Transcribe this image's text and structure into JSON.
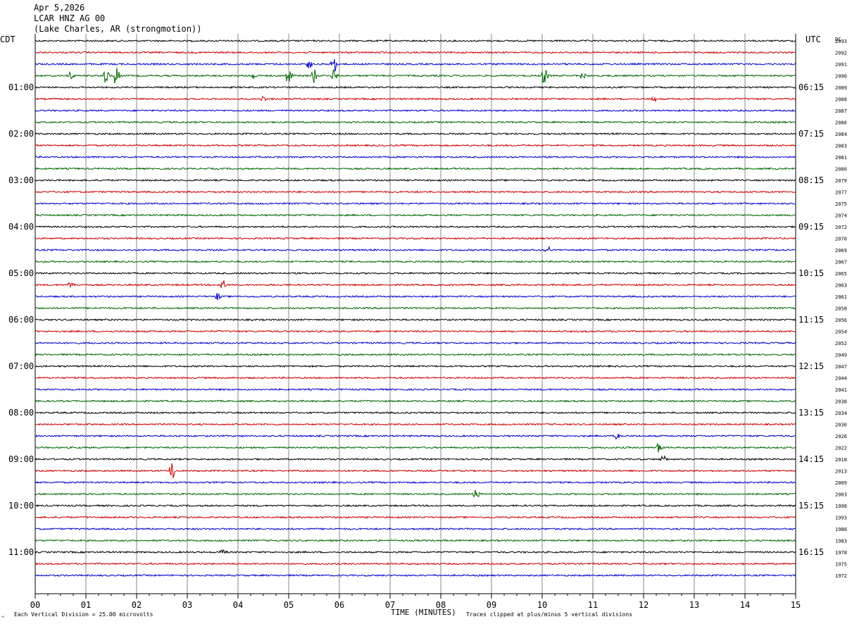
{
  "header": {
    "date": "Apr 5,2026",
    "station": "LCAR HNZ AG 00",
    "location": "(Lake Charles, AR (strongmotion))"
  },
  "labels": {
    "left_tz": "CDT",
    "right_tz": "UTC",
    "dc_label": "DC",
    "xlabel": "TIME (MINUTES)",
    "scale_note": "Each Vertical Division =   25.00 microvolts",
    "clip_note": "Traces clipped at plus/minus 5 vertical divisions",
    "corner_mark": "^"
  },
  "colors": {
    "trace_cycle": [
      "#000000",
      "#cc0000",
      "#0000cc",
      "#006600"
    ],
    "grid": "#888888",
    "frame": "#000000"
  },
  "chart_data": {
    "type": "line",
    "subtype": "helicorder",
    "title": "LCAR HNZ AG 00",
    "xlabel": "TIME (MINUTES)",
    "xlim": [
      0,
      15
    ],
    "x_ticks": [
      "00",
      "01",
      "02",
      "03",
      "04",
      "05",
      "06",
      "07",
      "08",
      "09",
      "10",
      "11",
      "12",
      "13",
      "14",
      "15"
    ],
    "rows_per_hour": 4,
    "minutes_per_row": 15,
    "left_hour_labels": [
      "01:00",
      "02:00",
      "03:00",
      "04:00",
      "05:00",
      "06:00",
      "07:00",
      "08:00",
      "09:00",
      "10:00",
      "11:00"
    ],
    "right_hour_labels": [
      "06:15",
      "07:15",
      "08:15",
      "09:15",
      "10:15",
      "11:15",
      "12:15",
      "13:15",
      "14:15",
      "15:15",
      "16:15"
    ],
    "dc_offsets": [
      2093,
      2092,
      2091,
      2090,
      2089,
      2088,
      2087,
      2086,
      2084,
      2083,
      2081,
      2080,
      2079,
      2077,
      2075,
      2074,
      2072,
      2070,
      2069,
      2067,
      2065,
      2063,
      2061,
      2058,
      2056,
      2054,
      2052,
      2049,
      2047,
      2044,
      2041,
      2038,
      2034,
      2030,
      2026,
      2022,
      2018,
      2013,
      2009,
      2003,
      1998,
      1993,
      1988,
      1983,
      1978,
      1975,
      1972
    ],
    "units": "microvolts",
    "vertical_division": 25.0,
    "clip_divisions": 5,
    "events": [
      {
        "row": 2,
        "minute": 5.4,
        "amplitude": 0.4
      },
      {
        "row": 2,
        "minute": 5.9,
        "amplitude": 1.0
      },
      {
        "row": 3,
        "minute": 0.7,
        "amplitude": 0.4
      },
      {
        "row": 3,
        "minute": 1.4,
        "amplitude": 0.8
      },
      {
        "row": 3,
        "minute": 1.6,
        "amplitude": 1.0
      },
      {
        "row": 3,
        "minute": 4.3,
        "amplitude": 0.3
      },
      {
        "row": 3,
        "minute": 5.0,
        "amplitude": 0.9
      },
      {
        "row": 3,
        "minute": 5.5,
        "amplitude": 0.6
      },
      {
        "row": 3,
        "minute": 5.9,
        "amplitude": 0.6
      },
      {
        "row": 3,
        "minute": 10.05,
        "amplitude": 1.0
      },
      {
        "row": 3,
        "minute": 10.8,
        "amplitude": 0.4
      },
      {
        "row": 5,
        "minute": 4.5,
        "amplitude": 0.3
      },
      {
        "row": 5,
        "minute": 12.2,
        "amplitude": 0.3
      },
      {
        "row": 18,
        "minute": 10.1,
        "amplitude": 0.4
      },
      {
        "row": 21,
        "minute": 3.7,
        "amplitude": 0.5
      },
      {
        "row": 21,
        "minute": 0.7,
        "amplitude": 0.3
      },
      {
        "row": 22,
        "minute": 3.6,
        "amplitude": 0.4
      },
      {
        "row": 34,
        "minute": 11.5,
        "amplitude": 0.4
      },
      {
        "row": 35,
        "minute": 12.3,
        "amplitude": 0.5
      },
      {
        "row": 36,
        "minute": 12.4,
        "amplitude": 0.4
      },
      {
        "row": 37,
        "minute": 2.7,
        "amplitude": 0.9
      },
      {
        "row": 39,
        "minute": 8.7,
        "amplitude": 0.6
      },
      {
        "row": 44,
        "minute": 3.7,
        "amplitude": 0.3
      }
    ]
  }
}
